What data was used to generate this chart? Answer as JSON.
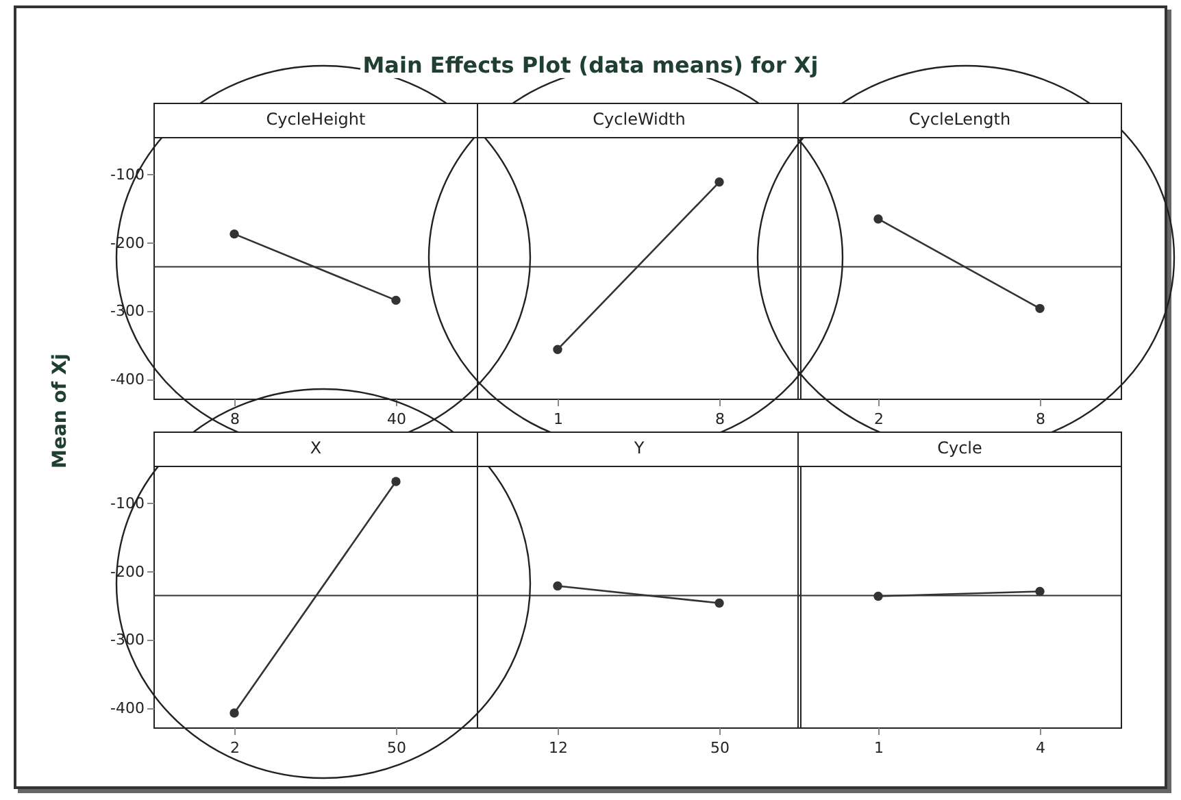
{
  "chart_data": [
    {
      "type": "line",
      "title": "Main Effects Plot (data means) for Xj",
      "subtitle": "CycleHeight",
      "ylabel": "Mean of Xj",
      "categories": [
        "8",
        "40"
      ],
      "series": [
        {
          "color": "#333333",
          "values": [
            -187,
            -284
          ]
        }
      ],
      "ylim": [
        -428,
        -45
      ],
      "yticks": [
        -400,
        -300,
        -200,
        -100
      ],
      "ref_lines": [
        {
          "axis": "y",
          "value": -235
        }
      ],
      "marker": "circle",
      "grid": false
    },
    {
      "type": "line",
      "subtitle": "CycleWidth",
      "categories": [
        "1",
        "8"
      ],
      "series": [
        {
          "color": "#333333",
          "values": [
            -356,
            -111
          ]
        }
      ],
      "ylim": [
        -428,
        -45
      ],
      "yticks": [
        -400,
        -300,
        -200,
        -100
      ],
      "ref_lines": [
        {
          "axis": "y",
          "value": -235
        }
      ],
      "marker": "circle",
      "grid": false,
      "tick_labels": "x"
    },
    {
      "type": "line",
      "subtitle": "CycleLength",
      "categories": [
        "2",
        "8"
      ],
      "series": [
        {
          "color": "#333333",
          "values": [
            -165,
            -296
          ]
        }
      ],
      "ylim": [
        -428,
        -45
      ],
      "yticks": [
        -400,
        -300,
        -200,
        -100
      ],
      "ref_lines": [
        {
          "axis": "y",
          "value": -235
        }
      ],
      "marker": "circle",
      "grid": false,
      "tick_labels": "x"
    },
    {
      "type": "line",
      "subtitle": "X",
      "categories": [
        "2",
        "50"
      ],
      "series": [
        {
          "color": "#333333",
          "values": [
            -407,
            -68
          ]
        }
      ],
      "ylim": [
        -428,
        -45
      ],
      "yticks": [
        -400,
        -300,
        -200,
        -100
      ],
      "ref_lines": [
        {
          "axis": "y",
          "value": -235
        }
      ],
      "marker": "circle",
      "grid": false
    },
    {
      "type": "line",
      "subtitle": "Y",
      "categories": [
        "12",
        "50"
      ],
      "series": [
        {
          "color": "#333333",
          "values": [
            -221,
            -246
          ]
        }
      ],
      "ylim": [
        -428,
        -45
      ],
      "yticks": [
        -400,
        -300,
        -200,
        -100
      ],
      "ref_lines": [
        {
          "axis": "y",
          "value": -235
        }
      ],
      "marker": "circle",
      "grid": false,
      "tick_labels": "x"
    },
    {
      "type": "line",
      "subtitle": "Cycle",
      "categories": [
        "1",
        "4"
      ],
      "series": [
        {
          "color": "#333333",
          "values": [
            -236,
            -229
          ]
        }
      ],
      "ylim": [
        -428,
        -45
      ],
      "yticks": [
        -400,
        -300,
        -200,
        -100
      ],
      "ref_lines": [
        {
          "axis": "y",
          "value": -235
        }
      ],
      "marker": "circle",
      "grid": false,
      "tick_labels": "x"
    }
  ]
}
